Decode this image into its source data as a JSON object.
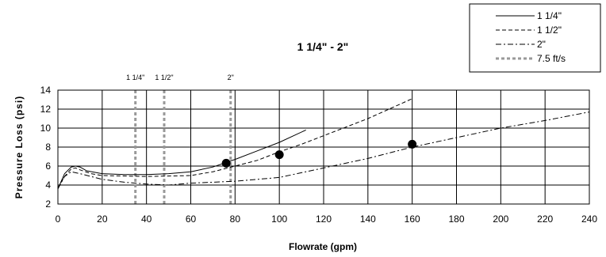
{
  "chart_data": {
    "type": "line",
    "title": "1 1/4\" - 2\"",
    "xlabel": "Flowrate (gpm)",
    "ylabel": "Pressure Loss (psi)",
    "xlim": [
      0,
      240
    ],
    "ylim": [
      2,
      14
    ],
    "xticks": [
      "0",
      "20",
      "40",
      "60",
      "80",
      "100",
      "120",
      "140",
      "160",
      "180",
      "200",
      "220",
      "240"
    ],
    "yticks": [
      "2",
      "4",
      "6",
      "8",
      "10",
      "12",
      "14"
    ],
    "grid": true,
    "legend_position": "top-right",
    "series": [
      {
        "name": "1 1/4\"",
        "style": "solid",
        "x": [
          0,
          3,
          6,
          8,
          10,
          13,
          20,
          30,
          40,
          50,
          60,
          70,
          80,
          90,
          100,
          112
        ],
        "y": [
          3.6,
          5.2,
          5.9,
          6.0,
          5.9,
          5.5,
          5.2,
          5.1,
          5.1,
          5.2,
          5.4,
          5.9,
          6.7,
          7.6,
          8.5,
          9.8
        ]
      },
      {
        "name": "1 1/2\"",
        "style": "dashed",
        "x": [
          0,
          3,
          6,
          8,
          10,
          15,
          20,
          40,
          60,
          70,
          80,
          90,
          100,
          110,
          120,
          140,
          160
        ],
        "y": [
          3.7,
          4.9,
          5.7,
          5.8,
          5.6,
          5.2,
          5.0,
          4.9,
          5.0,
          5.4,
          6.0,
          6.6,
          7.5,
          8.3,
          9.2,
          11.0,
          13.1
        ]
      },
      {
        "name": "2\"",
        "style": "dashdot",
        "x": [
          0,
          3,
          6,
          10,
          20,
          30,
          40,
          50,
          60,
          80,
          100,
          120,
          140,
          160,
          180,
          200,
          220,
          240
        ],
        "y": [
          3.6,
          4.9,
          5.4,
          5.2,
          4.6,
          4.3,
          4.1,
          4.0,
          4.2,
          4.4,
          4.8,
          5.8,
          6.8,
          8.0,
          9.0,
          10.0,
          10.8,
          11.7
        ]
      }
    ],
    "markers": {
      "name": "7.5 ft/s",
      "points": [
        {
          "x": 76,
          "y": 6.3
        },
        {
          "x": 100,
          "y": 7.2
        },
        {
          "x": 160,
          "y": 8.3
        }
      ]
    },
    "reference_lines": [
      {
        "x": 35,
        "label": "1 1/4\""
      },
      {
        "x": 48,
        "label": "1 1/2\""
      },
      {
        "x": 78,
        "label": "2\""
      }
    ]
  }
}
